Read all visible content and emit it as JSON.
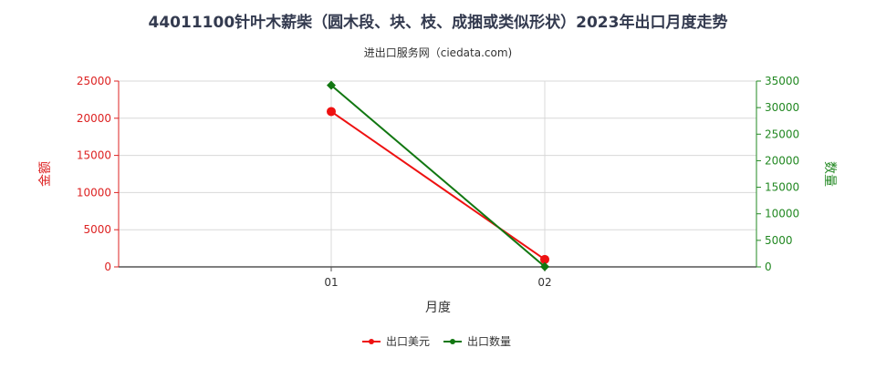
{
  "chart_data": {
    "type": "line",
    "title": "44011100针叶木薪柴（圆木段、块、枝、成捆或类似形状）2023年出口月度走势",
    "subtitle": "进出口服务网（ciedata.com)",
    "xlabel": "月度",
    "ylabel_left": "金额",
    "ylabel_right": "数量",
    "categories": [
      "01",
      "02"
    ],
    "y_left": {
      "min": 0,
      "max": 25000,
      "ticks": [
        "0",
        "5000",
        "10000",
        "15000",
        "20000",
        "25000"
      ],
      "color": "#dd2222"
    },
    "y_right": {
      "min": 0,
      "max": 35000,
      "ticks": [
        "0",
        "5000",
        "10000",
        "15000",
        "20000",
        "25000",
        "30000",
        "35000"
      ],
      "color": "#228822"
    },
    "grid": true,
    "legend_position": "bottom-center",
    "series": [
      {
        "name": "出口美元",
        "axis": "left",
        "color": "#ee1111",
        "values": [
          20900,
          1000
        ]
      },
      {
        "name": "出口数量",
        "axis": "right",
        "color": "#117711",
        "values": [
          34200,
          50
        ]
      }
    ]
  }
}
